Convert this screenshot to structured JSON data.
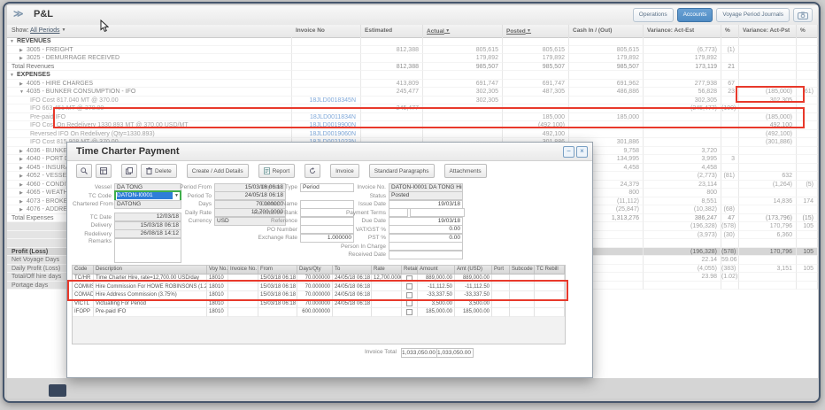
{
  "header": {
    "collapse_glyph": "≫",
    "title": "P&L",
    "buttons": {
      "operations": "Operations",
      "accounts": "Accounts",
      "voyage_period_journals": "Voyage Period Journals"
    }
  },
  "filter_bar": {
    "show_label": "Show:",
    "period_value": "All Periods"
  },
  "pnl_table": {
    "columns": [
      {
        "label": "Invoice No"
      },
      {
        "label": "Estimated"
      },
      {
        "label": "Actual",
        "sort": true
      },
      {
        "label": "Posted",
        "sort": true
      },
      {
        "label": "Cash In / (Out)"
      },
      {
        "label": "Variance: Act-Est"
      },
      {
        "label": "%"
      },
      {
        "label": "Variance: Act-Pst"
      },
      {
        "label": "%"
      }
    ],
    "rows": [
      {
        "type": "section",
        "arrow": "down",
        "label": "REVENUES"
      },
      {
        "type": "account",
        "arrow": "right",
        "label": "3005 - FREIGHT",
        "est": "812,388",
        "actual": "805,615",
        "posted": "805,615",
        "cash": "805,615",
        "var_ae": "(6,773)",
        "pct_ae": "(1)"
      },
      {
        "type": "account",
        "arrow": "right",
        "label": "3025 - DEMURRAGE RECEIVED",
        "actual": "179,892",
        "posted": "179,892",
        "cash": "179,892",
        "var_ae": "179,892"
      },
      {
        "type": "total",
        "label": "Total Revenues",
        "est": "812,388",
        "actual": "985,507",
        "posted": "985,507",
        "cash": "985,507",
        "var_ae": "173,119",
        "pct_ae": "21"
      },
      {
        "type": "section",
        "arrow": "down",
        "label": "EXPENSES"
      },
      {
        "type": "account",
        "arrow": "right",
        "label": "4005 - HIRE CHARGES",
        "est": "413,809",
        "actual": "691,747",
        "posted": "691,747",
        "cash": "691,962",
        "var_ae": "277,938",
        "pct_ae": "67"
      },
      {
        "type": "account",
        "arrow": "down",
        "label": "4035 - BUNKER CONSUMPTION - IFO",
        "est": "245,477",
        "actual": "302,305",
        "posted": "487,305",
        "cash": "486,886",
        "var_ae": "56,828",
        "pct_ae": "23",
        "var_ap": "(185,000)",
        "pct_ap": "(61)"
      },
      {
        "type": "subline",
        "label": "IFO Cost 817.040 MT @ 370.00",
        "invoice": "18JLD0018345N",
        "invoice_link": true,
        "actual": "302,305",
        "var_ae": "302,305",
        "var_ap": "302,305"
      },
      {
        "type": "subline",
        "label": "IFO 663.451 MT @ 370.00",
        "est": "245,477",
        "var_ae": "(245,477)",
        "pct_ae": "(100)"
      },
      {
        "type": "subline",
        "label": "Pre-paid IFO",
        "invoice": "18JLD0011834N",
        "invoice_link": true,
        "posted": "185,000",
        "cash": "185,000",
        "var_ap": "(185,000)"
      },
      {
        "type": "subline",
        "label": "IFO Cost On Redelivery 1330.893 MT @ 370.00 USD/MT",
        "invoice": "18JLD0019900N",
        "invoice_link": true,
        "posted": "(492,100)",
        "var_ap": "492,100"
      },
      {
        "type": "subline",
        "label": "Reversed IFO On Redelivery (Qty=1330.893)",
        "invoice": "18JLD0019060N",
        "invoice_link": true,
        "posted": "492,100",
        "var_ap": "(492,100)"
      },
      {
        "type": "subline",
        "label": "IFO Cost 815.908 MT @ 370.00",
        "invoice": "18JLD0021023N",
        "invoice_link": true,
        "posted": "301,886",
        "cash": "301,886",
        "var_ap": "(301,886)"
      },
      {
        "type": "account",
        "arrow": "right",
        "label": "4036 - BUNKER",
        "cash": "9,758",
        "var_ae": "3,720"
      },
      {
        "type": "account",
        "arrow": "right",
        "label": "4040 - PORT D",
        "cash": "134,995",
        "var_ae": "3,995",
        "pct_ae": "3"
      },
      {
        "type": "account",
        "arrow": "right",
        "label": "4045 - INSURA",
        "cash": "4,458",
        "var_ae": "4,458"
      },
      {
        "type": "account",
        "arrow": "right",
        "label": "4052 - VESSEL",
        "var_ae": "(2,773)",
        "pct_ae": "(81)",
        "var_ap": "632"
      },
      {
        "type": "account",
        "arrow": "right",
        "label": "4060 - CONDIT",
        "cash": "24,379",
        "var_ae": "23,114",
        "var_ap": "(1,264)",
        "pct_ap": "(5)"
      },
      {
        "type": "account",
        "arrow": "right",
        "label": "4065 - WEATHE",
        "cash": "800",
        "var_ae": "800"
      },
      {
        "type": "account",
        "arrow": "right",
        "label": "4073 - BROKER",
        "cash": "(11,112)",
        "var_ae": "8,551",
        "var_ap": "14,836",
        "pct_ap": "174"
      },
      {
        "type": "account",
        "arrow": "right",
        "label": "4076 - ADDRES",
        "cash": "(25,847)",
        "var_ae": "(10,382)",
        "pct_ae": "(68)"
      },
      {
        "type": "total",
        "label": "Total Expenses",
        "cash": "1,313,276",
        "var_ae": "386,247",
        "pct_ae": "47",
        "var_ap": "(173,796)",
        "pct_ap": "(15)"
      },
      {
        "type": "summary",
        "label": "",
        "var_ae": "(196,328)",
        "pct_ae": "(578)",
        "var_ap": "170,796",
        "pct_ap": "105"
      },
      {
        "type": "summary",
        "label": "",
        "var_ae": "(3,973)",
        "pct_ae": "(30)",
        "var_ap": "6,360"
      },
      {
        "type": "spacer",
        "label": ""
      },
      {
        "type": "grandtotal",
        "label": "Profit (Loss)",
        "var_ae": "(196,328)",
        "pct_ae": "(578)",
        "var_ap": "170,796",
        "pct_ap": "105"
      },
      {
        "type": "summary",
        "label": "Net Voyage Days",
        "var_ae": "22.14",
        "pct_ae": "59.06"
      },
      {
        "type": "summary",
        "label": "Daily Profit (Loss)",
        "var_ae": "(4,055)",
        "pct_ae": "(383)",
        "var_ap": "3,151",
        "pct_ap": "105"
      },
      {
        "type": "summary",
        "label": "Total/Off hire days",
        "var_ae": "23.98",
        "pct_ae": "(1.02)"
      },
      {
        "type": "summary",
        "label": "Portage days"
      }
    ]
  },
  "annotations": {
    "highlight_color": "#e8392b"
  },
  "modal": {
    "title": "Time Charter Payment",
    "window_buttons": {
      "minimize": "−",
      "close": "×"
    },
    "toolbar": [
      {
        "name": "search-button",
        "icon": "search",
        "label": ""
      },
      {
        "name": "book-button",
        "icon": "book",
        "label": ""
      },
      {
        "name": "copy-button",
        "icon": "copy",
        "label": "",
        "group_gap": true
      },
      {
        "name": "delete-button",
        "icon": "trash",
        "label": "Delete"
      },
      {
        "name": "create-add-details-button",
        "icon": "",
        "label": "Create / Add Details",
        "group_gap": true
      },
      {
        "name": "report-button",
        "icon": "report",
        "label": "Report",
        "group_gap": true
      },
      {
        "name": "refresh-button",
        "icon": "refresh",
        "label": "",
        "group_gap": true
      },
      {
        "name": "invoice-button",
        "icon": "",
        "label": "Invoice",
        "group_gap": true
      },
      {
        "name": "standard-paragraphs-button",
        "icon": "",
        "label": "Standard Paragraphs",
        "group_gap": true
      },
      {
        "name": "attachments-button",
        "icon": "",
        "label": "Attachments",
        "group_gap": true
      }
    ],
    "form": {
      "vessel": {
        "label": "Vessel",
        "value": "DA TONG"
      },
      "tc_code": {
        "label": "TC Code",
        "value": "DATON-I0001"
      },
      "chartered_from": {
        "label": "Chartered From",
        "value": "DATONG"
      },
      "tc_date": {
        "label": "TC Date",
        "value": "12/03/18"
      },
      "delivery": {
        "label": "Delivery",
        "value": "15/03/18 06:18"
      },
      "redelivery": {
        "label": "Redelivery",
        "value": "26/08/18 14:12"
      },
      "remarks": {
        "label": "Remarks",
        "value": ""
      },
      "period_from": {
        "label": "Period From",
        "value": "15/03/18 06:18"
      },
      "period_to": {
        "label": "Period To",
        "value": "24/05/18 06:18"
      },
      "days": {
        "label": "Days",
        "value": "70.000000"
      },
      "daily_rate": {
        "label": "Daily Rate",
        "value": "12,700.0000"
      },
      "currency": {
        "label": "Currency",
        "value": "USD"
      },
      "payment_type": {
        "label": "Payment Type",
        "value": "Period"
      },
      "contact_name": {
        "label": "Contact Name",
        "value": ""
      },
      "remittance_bank": {
        "label": "Remittance Bank",
        "value": ""
      },
      "reference": {
        "label": "Reference",
        "value": ""
      },
      "po_number": {
        "label": "PO Number",
        "value": ""
      },
      "exchange_rate": {
        "label": "Exchange Rate",
        "value": "1.000000"
      },
      "invoice_no": {
        "label": "Invoice No.",
        "value": "DATON-I0001 DA TONG Hire 1"
      },
      "status": {
        "label": "Status",
        "value": "Posted"
      },
      "issue_date": {
        "label": "Issue Date",
        "value": "19/03/18"
      },
      "payment_terms": {
        "label": "Payment Terms",
        "value": ""
      },
      "due_date": {
        "label": "Due Date",
        "value": "19/03/18"
      },
      "vat_gst": {
        "label": "VAT/GST %",
        "value": "0.00"
      },
      "pst": {
        "label": "PST %",
        "value": "0.00"
      },
      "person_in_charge": {
        "label": "Person In Charge",
        "value": ""
      },
      "received_date": {
        "label": "Received Date",
        "value": ""
      }
    },
    "table": {
      "columns": [
        "Code",
        "Description",
        "Voy No.",
        "Invoice No.",
        "From",
        "Days/Qty",
        "To",
        "Rate",
        "Retain",
        "Amount",
        "Amt (USD)",
        "Port",
        "Subcode",
        "TC Rebill"
      ],
      "rows": [
        {
          "code": "TC/HR",
          "description": "Time Charter Hire, rate=12,700.00 USD/day",
          "voy_no": "18010",
          "invoice_no": "",
          "from": "15/03/18 06:18",
          "days_qty": "70.000000",
          "to": "24/05/18 06:18",
          "rate": "12,700.0000",
          "retain": false,
          "amount": "889,000.00",
          "amt_usd": "889,000.00",
          "port": "",
          "subcode": "",
          "tc_rebill": ""
        },
        {
          "code": "COMMS",
          "description": "Hire Commission For HOWE ROBINSONS (1.25%)",
          "voy_no": "18010",
          "invoice_no": "",
          "from": "15/03/18 06:18",
          "days_qty": "70.000000",
          "to": "24/05/18 06:18",
          "rate": "",
          "retain": false,
          "amount": "-11,112.50",
          "amt_usd": "-11,112.50",
          "port": "",
          "subcode": "",
          "tc_rebill": ""
        },
        {
          "code": "COMAD",
          "description": "Hire Address Commission (3.75%)",
          "voy_no": "18010",
          "invoice_no": "",
          "from": "15/03/18 06:18",
          "days_qty": "70.000000",
          "to": "24/05/18 06:18",
          "rate": "",
          "retain": false,
          "amount": "-33,337.50",
          "amt_usd": "-33,337.50",
          "port": "",
          "subcode": "",
          "tc_rebill": ""
        },
        {
          "code": "VICTL",
          "description": "Victualling For Period",
          "voy_no": "18010",
          "invoice_no": "",
          "from": "15/03/18 06:18",
          "days_qty": "70.000000",
          "to": "24/05/18 06:18",
          "rate": "",
          "retain": false,
          "amount": "3,500.00",
          "amt_usd": "3,500.00",
          "port": "",
          "subcode": "",
          "tc_rebill": ""
        },
        {
          "code": "IFOPP",
          "description": "Pre-paid IFO",
          "voy_no": "18010",
          "invoice_no": "",
          "from": "",
          "days_qty": "600.000000",
          "to": "",
          "rate": "",
          "retain": false,
          "amount": "185,000.00",
          "amt_usd": "185,000.00",
          "port": "",
          "subcode": "",
          "tc_rebill": ""
        }
      ]
    },
    "invoice_total": {
      "label": "Invoice Total",
      "value1": "1,033,050.00",
      "value2": "1,033,050.00"
    }
  }
}
